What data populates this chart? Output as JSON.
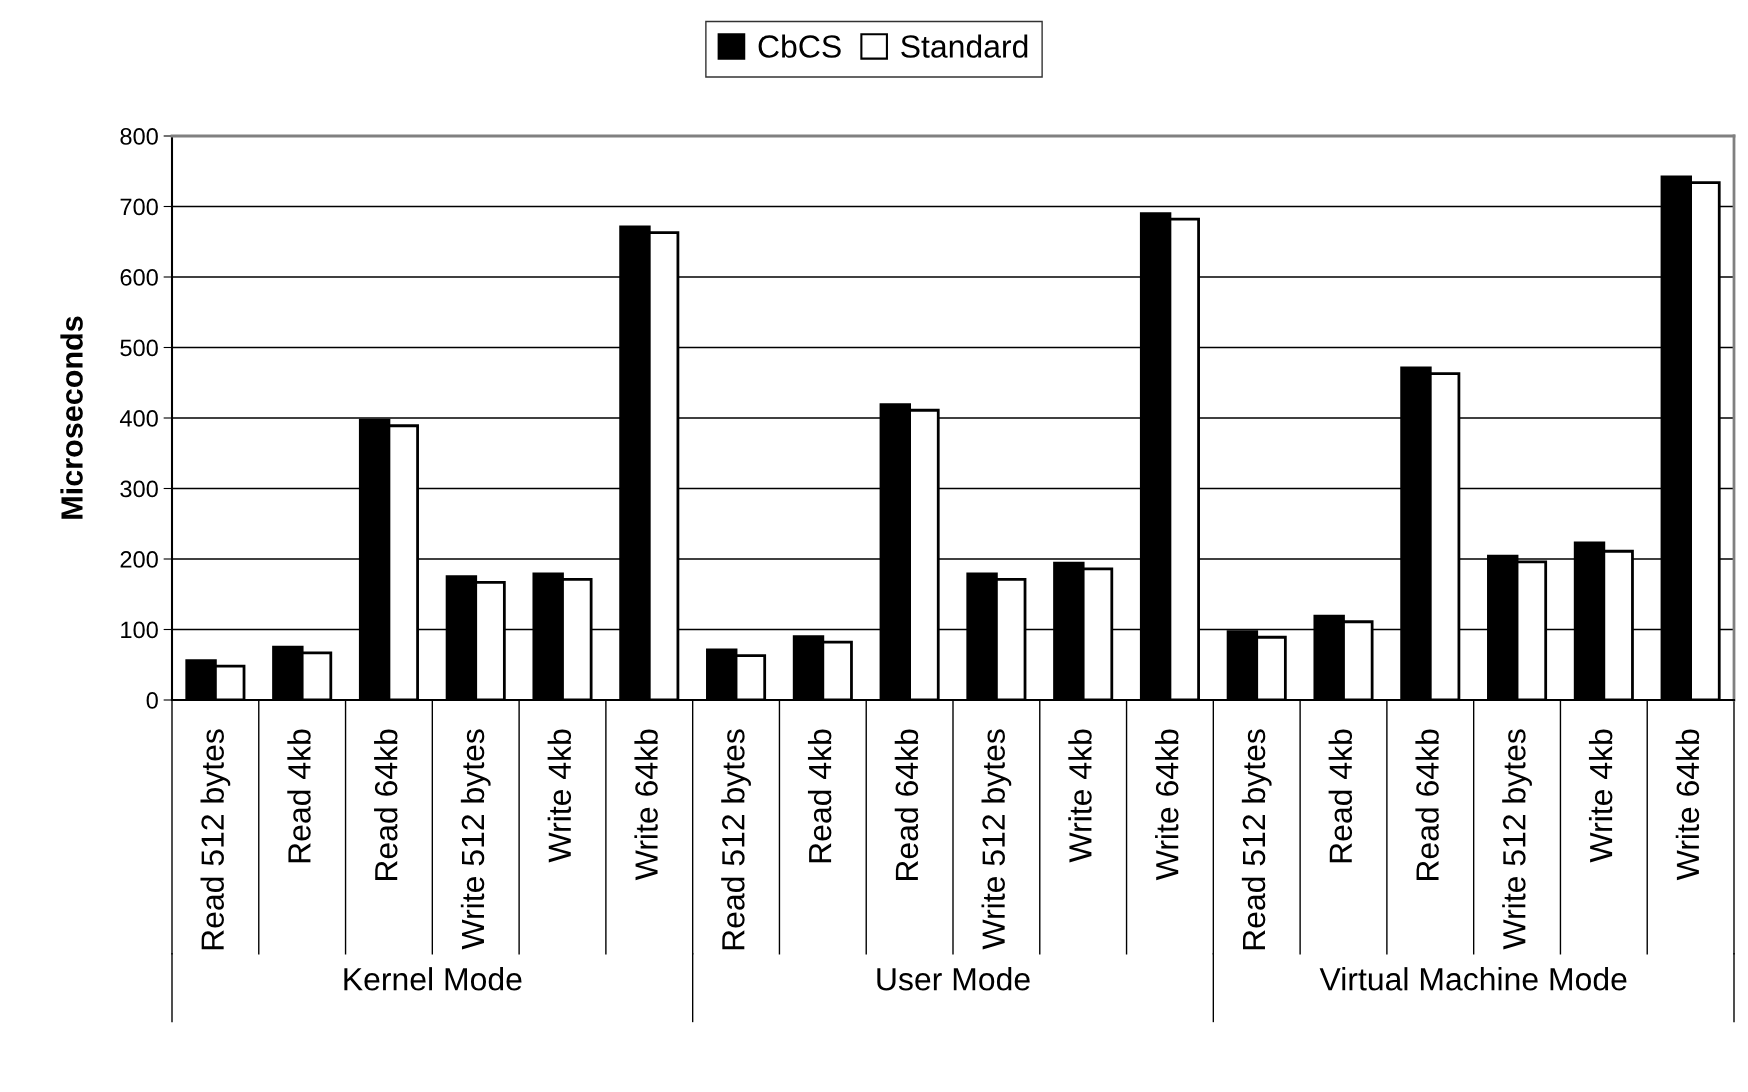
{
  "chart_data": {
    "type": "bar",
    "ylabel": "Microseconds",
    "categories": [
      "Read 512 bytes",
      "Read 4kb",
      "Read 64kb",
      "Write 512 bytes",
      "Write 4kb",
      "Write 64kb",
      "Read 512 bytes",
      "Read 4kb",
      "Read 64kb",
      "Write 512 bytes",
      "Write 4kb",
      "Write 64kb",
      "Read 512 bytes",
      "Read 4kb",
      "Read 64kb",
      "Write 512 bytes",
      "Write 4kb",
      "Write 64kb"
    ],
    "series": [
      {
        "name": "CbCS",
        "color": "#000000",
        "values": [
          56,
          75,
          397,
          175,
          179,
          671,
          71,
          90,
          419,
          179,
          194,
          690,
          97,
          119,
          471,
          204,
          223,
          742
        ]
      },
      {
        "name": "Standard",
        "color": "#ffffff",
        "values": [
          48,
          67,
          389,
          167,
          171,
          663,
          63,
          82,
          411,
          171,
          186,
          682,
          89,
          111,
          463,
          196,
          211,
          734
        ]
      }
    ],
    "annotations": [
      "Kernel Mode",
      "User Mode",
      "Virtual Machine Mode"
    ],
    "ylim": [
      0,
      800
    ],
    "yticks": [
      0,
      100,
      200,
      300,
      400,
      500,
      600,
      700,
      800
    ],
    "grid": "y",
    "legend": "top"
  }
}
